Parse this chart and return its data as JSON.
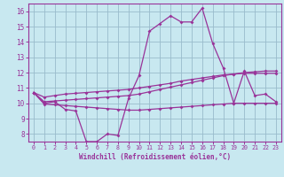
{
  "xlabel": "Windchill (Refroidissement éolien,°C)",
  "background_color": "#c8e8f0",
  "grid_color": "#99bbcc",
  "line_color": "#993399",
  "xlim": [
    -0.5,
    23.5
  ],
  "ylim": [
    7.5,
    16.5
  ],
  "xticks": [
    0,
    1,
    2,
    3,
    4,
    5,
    6,
    7,
    8,
    9,
    10,
    11,
    12,
    13,
    14,
    15,
    16,
    17,
    18,
    19,
    20,
    21,
    22,
    23
  ],
  "yticks": [
    8,
    9,
    10,
    11,
    12,
    13,
    14,
    15,
    16
  ],
  "x": [
    0,
    1,
    2,
    3,
    4,
    5,
    6,
    7,
    8,
    9,
    10,
    11,
    12,
    13,
    14,
    15,
    16,
    17,
    18,
    19,
    20,
    21,
    22,
    23
  ],
  "line1": [
    10.7,
    10.0,
    10.1,
    9.6,
    9.5,
    7.5,
    7.5,
    8.0,
    7.9,
    10.3,
    11.8,
    14.7,
    15.2,
    15.7,
    15.3,
    15.3,
    16.2,
    13.9,
    12.3,
    10.0,
    12.1,
    10.5,
    10.6,
    10.1
  ],
  "line2": [
    10.7,
    10.1,
    10.15,
    10.2,
    10.25,
    10.3,
    10.35,
    10.4,
    10.45,
    10.5,
    10.6,
    10.75,
    10.9,
    11.05,
    11.2,
    11.35,
    11.5,
    11.65,
    11.8,
    11.9,
    12.0,
    12.05,
    12.1,
    12.1
  ],
  "line3": [
    10.7,
    10.4,
    10.5,
    10.6,
    10.65,
    10.7,
    10.75,
    10.8,
    10.85,
    10.9,
    11.0,
    11.1,
    11.2,
    11.3,
    11.45,
    11.55,
    11.65,
    11.75,
    11.85,
    11.9,
    11.95,
    11.95,
    11.95,
    11.95
  ],
  "line4": [
    10.7,
    9.95,
    9.9,
    9.85,
    9.8,
    9.75,
    9.7,
    9.65,
    9.6,
    9.55,
    9.55,
    9.6,
    9.65,
    9.7,
    9.75,
    9.8,
    9.85,
    9.9,
    9.95,
    10.0,
    10.0,
    10.0,
    10.0,
    10.0
  ]
}
